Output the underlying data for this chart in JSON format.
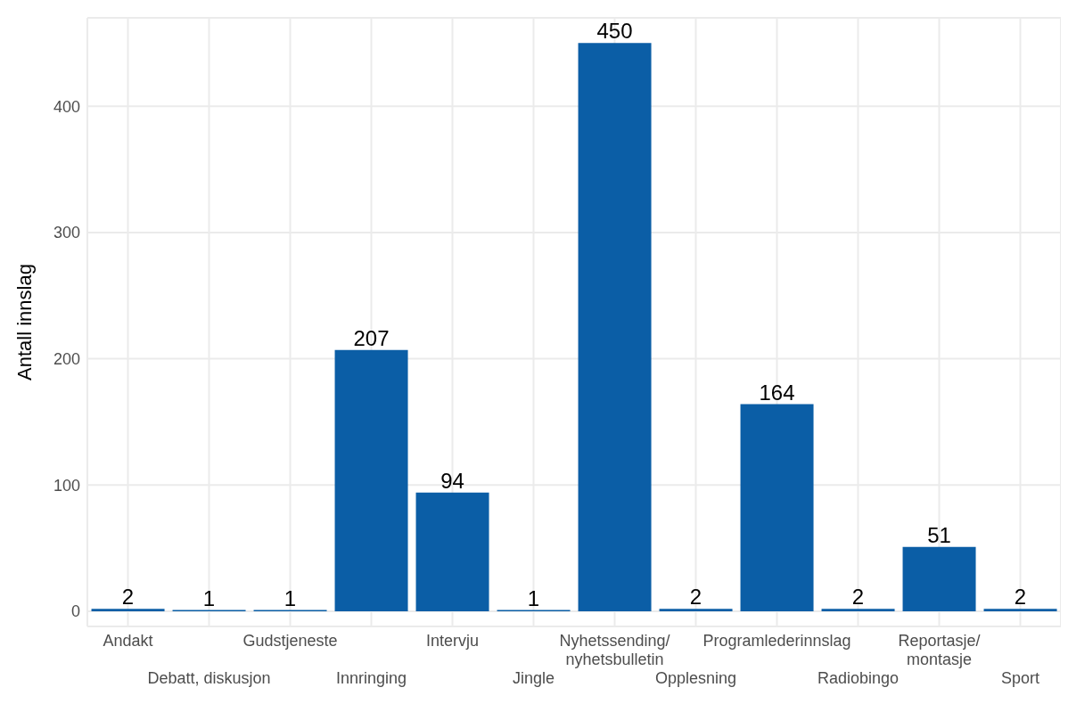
{
  "chart_data": {
    "type": "bar",
    "ylabel": "Antall innslag",
    "categories": [
      "Andakt",
      "Debatt, diskusjon",
      "Gudstjeneste",
      "Innringing",
      "Intervju",
      "Jingle",
      "Nyhetssending/\nnyhetsbulletin",
      "Opplesning",
      "Programlederinnslag",
      "Radiobingo",
      "Reportasje/\nmontasje",
      "Sport"
    ],
    "values": [
      2,
      1,
      1,
      207,
      94,
      1,
      450,
      2,
      164,
      2,
      51,
      2
    ],
    "color": "#0b5ea6",
    "ylim": [
      -12,
      470
    ],
    "yticks": [
      0,
      100,
      200,
      300,
      400
    ],
    "grid": true,
    "data_labels": true
  }
}
